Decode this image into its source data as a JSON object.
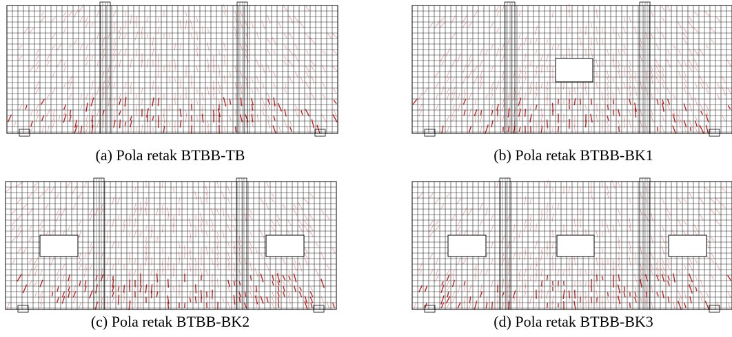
{
  "panels": [
    {
      "caption": "(a) Pola retak BTBB-TB"
    },
    {
      "caption": "(b) Pola retak BTBB-BK1"
    },
    {
      "caption": "(c) Pola retak BTBB-BK2"
    },
    {
      "caption": "(d) Pola retak BTBB-BK3"
    }
  ]
}
